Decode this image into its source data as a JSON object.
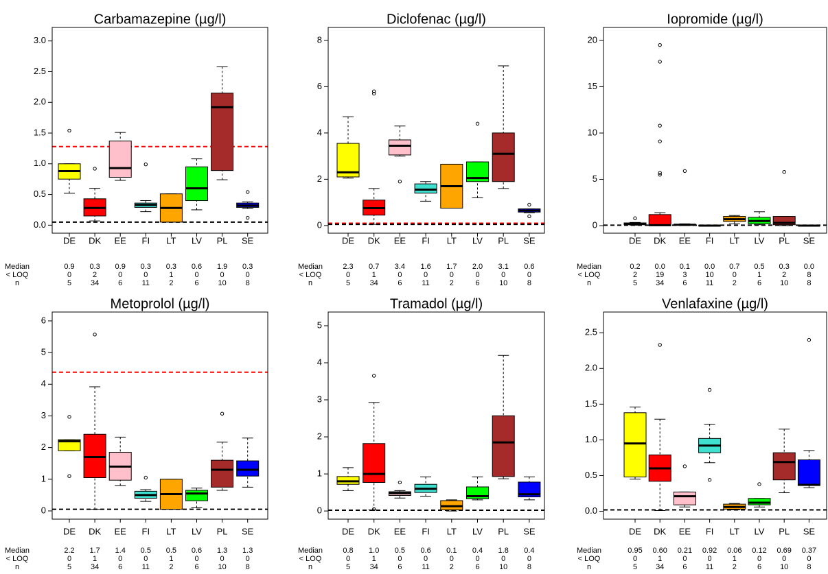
{
  "chart_data": [
    {
      "type": "box",
      "title": "Carbamazepine (µg/l)",
      "categories": [
        "DE",
        "DK",
        "EE",
        "FI",
        "LT",
        "LV",
        "PL",
        "SE"
      ],
      "colors": [
        "#ffff00",
        "#ff0000",
        "#ffc0cb",
        "#40e0d0",
        "#ffa500",
        "#00ff00",
        "#a52a2a",
        "#0000ff"
      ],
      "ylim": [
        -0.13,
        3.22
      ],
      "yticks": [
        {
          "value": 0,
          "label": "0.0"
        },
        0.5,
        {
          "value": 1,
          "label": "1.0"
        },
        1.5,
        {
          "value": 2,
          "label": "2.0"
        },
        2.5,
        {
          "value": 3,
          "label": "3.0"
        }
      ],
      "boxes": [
        {
          "whislo": 0.52,
          "q1": 0.75,
          "med": 0.88,
          "q3": 1.0,
          "whishi": 1.0,
          "fliers": [
            1.54
          ]
        },
        {
          "whislo": 0.07,
          "q1": 0.15,
          "med": 0.28,
          "q3": 0.43,
          "whishi": 0.6,
          "fliers": [
            0.92
          ]
        },
        {
          "whislo": 0.73,
          "q1": 0.78,
          "med": 0.93,
          "q3": 1.37,
          "whishi": 1.51,
          "fliers": []
        },
        {
          "whislo": 0.22,
          "q1": 0.29,
          "med": 0.33,
          "q3": 0.36,
          "whishi": 0.4,
          "fliers": [
            0.99
          ]
        },
        {
          "whislo": 0.05,
          "q1": 0.05,
          "med": 0.28,
          "q3": 0.51,
          "whishi": 0.51,
          "fliers": []
        },
        {
          "whislo": 0.25,
          "q1": 0.4,
          "med": 0.6,
          "q3": 0.95,
          "whishi": 1.08,
          "fliers": []
        },
        {
          "whislo": 0.74,
          "q1": 0.89,
          "med": 1.92,
          "q3": 2.15,
          "whishi": 2.58,
          "fliers": []
        },
        {
          "whislo": 0.27,
          "q1": 0.29,
          "med": 0.32,
          "q3": 0.36,
          "whishi": 0.38,
          "fliers": [
            0.54,
            0.12
          ]
        }
      ],
      "ref_lines": [
        {
          "value": 1.28,
          "color": "#ff0000"
        },
        {
          "value": 0.05,
          "color": "#000000"
        }
      ],
      "table": {
        "row_labels": [
          "Median",
          "< LOQ",
          "n"
        ],
        "rows": [
          [
            "0.9",
            "0.3",
            "0.9",
            "0.3",
            "0.3",
            "0.6",
            "1.9",
            "0.3"
          ],
          [
            "0",
            "2",
            "0",
            "0",
            "1",
            "0",
            "0",
            "0"
          ],
          [
            "5",
            "34",
            "6",
            "11",
            "2",
            "6",
            "10",
            "8"
          ]
        ]
      }
    },
    {
      "type": "box",
      "title": "Diclofenac (µg/l)",
      "categories": [
        "DE",
        "DK",
        "EE",
        "FI",
        "LT",
        "LV",
        "PL",
        "SE"
      ],
      "colors": [
        "#ffff00",
        "#ff0000",
        "#ffc0cb",
        "#40e0d0",
        "#ffa500",
        "#00ff00",
        "#a52a2a",
        "#0000ff"
      ],
      "ylim": [
        -0.33,
        8.56
      ],
      "yticks": [
        0,
        2,
        4,
        6,
        8
      ],
      "boxes": [
        {
          "whislo": 2.05,
          "q1": 2.1,
          "med": 2.3,
          "q3": 3.55,
          "whishi": 4.7,
          "fliers": []
        },
        {
          "whislo": 0.05,
          "q1": 0.45,
          "med": 0.75,
          "q3": 1.1,
          "whishi": 1.6,
          "fliers": [
            5.7,
            5.8
          ]
        },
        {
          "whislo": 3.0,
          "q1": 3.05,
          "med": 3.45,
          "q3": 3.7,
          "whishi": 4.3,
          "fliers": [
            1.9
          ]
        },
        {
          "whislo": 1.05,
          "q1": 1.4,
          "med": 1.55,
          "q3": 1.8,
          "whishi": 1.9,
          "fliers": []
        },
        {
          "whislo": 0.75,
          "q1": 0.75,
          "med": 1.7,
          "q3": 2.65,
          "whishi": 2.65,
          "fliers": []
        },
        {
          "whislo": 1.2,
          "q1": 1.9,
          "med": 2.05,
          "q3": 2.75,
          "whishi": 2.75,
          "fliers": [
            4.4
          ]
        },
        {
          "whislo": 1.6,
          "q1": 1.9,
          "med": 3.1,
          "q3": 4.0,
          "whishi": 6.9,
          "fliers": []
        },
        {
          "whislo": 0.55,
          "q1": 0.58,
          "med": 0.65,
          "q3": 0.72,
          "whishi": 0.72,
          "fliers": [
            0.9,
            0.4
          ]
        }
      ],
      "ref_lines": [
        {
          "value": 0.1,
          "color": "#ff0000"
        },
        {
          "value": 0.05,
          "color": "#000000"
        }
      ],
      "table": {
        "row_labels": [
          "Median",
          "< LOQ",
          "n"
        ],
        "rows": [
          [
            "2.3",
            "0.7",
            "3.4",
            "1.6",
            "1.7",
            "2.0",
            "3.1",
            "0.6"
          ],
          [
            "0",
            "1",
            "0",
            "0",
            "0",
            "0",
            "0",
            "0"
          ],
          [
            "5",
            "34",
            "6",
            "11",
            "2",
            "6",
            "10",
            "8"
          ]
        ]
      }
    },
    {
      "type": "box",
      "title": "Iopromide (µg/l)",
      "categories": [
        "DE",
        "DK",
        "EE",
        "FI",
        "LT",
        "LV",
        "PL",
        "SE"
      ],
      "colors": [
        "#ffff00",
        "#ff0000",
        "#ffc0cb",
        "#40e0d0",
        "#ffa500",
        "#00ff00",
        "#a52a2a",
        "#0000ff"
      ],
      "ylim": [
        -0.81,
        21.4
      ],
      "yticks": [
        0,
        5,
        10,
        15,
        20
      ],
      "boxes": [
        {
          "whislo": 0.05,
          "q1": 0.1,
          "med": 0.2,
          "q3": 0.3,
          "whishi": 0.35,
          "fliers": [
            0.8
          ]
        },
        {
          "whislo": 0,
          "q1": 0,
          "med": 0.05,
          "q3": 1.2,
          "whishi": 1.4,
          "fliers": [
            5.5,
            5.7,
            9.1,
            10.8,
            17.7,
            19.5
          ]
        },
        {
          "whislo": 0,
          "q1": 0.05,
          "med": 0.1,
          "q3": 0.15,
          "whishi": 0.2,
          "fliers": [
            5.9
          ]
        },
        {
          "whislo": 0,
          "q1": 0,
          "med": 0,
          "q3": 0.05,
          "whishi": 0.05,
          "fliers": []
        },
        {
          "whislo": 0.2,
          "q1": 0.45,
          "med": 0.7,
          "q3": 1.0,
          "whishi": 1.1,
          "fliers": []
        },
        {
          "whislo": 0.1,
          "q1": 0.2,
          "med": 0.5,
          "q3": 0.9,
          "whishi": 1.5,
          "fliers": []
        },
        {
          "whislo": 0,
          "q1": 0.1,
          "med": 0.3,
          "q3": 1.0,
          "whishi": 1.0,
          "fliers": [
            5.8
          ]
        },
        {
          "whislo": 0,
          "q1": 0,
          "med": 0,
          "q3": 0.05,
          "whishi": 0.05,
          "fliers": []
        }
      ],
      "ref_lines": [
        {
          "value": 0.05,
          "color": "#000000"
        }
      ],
      "table": {
        "row_labels": [
          "Median",
          "< LOQ",
          "n"
        ],
        "rows": [
          [
            "0.2",
            "0.0",
            "0.1",
            "0.0",
            "0.7",
            "0.5",
            "0.3",
            "0.0"
          ],
          [
            "2",
            "19",
            "3",
            "10",
            "0",
            "1",
            "2",
            "8"
          ],
          [
            "5",
            "34",
            "6",
            "11",
            "2",
            "6",
            "10",
            "8"
          ]
        ]
      }
    },
    {
      "type": "box",
      "title": "Metoprolol (µg/l)",
      "categories": [
        "DE",
        "DK",
        "EE",
        "FI",
        "LT",
        "LV",
        "PL",
        "SE"
      ],
      "colors": [
        "#ffff00",
        "#ff0000",
        "#ffc0cb",
        "#40e0d0",
        "#ffa500",
        "#00ff00",
        "#a52a2a",
        "#0000ff"
      ],
      "ylim": [
        -0.26,
        6.28
      ],
      "yticks": [
        0,
        1,
        2,
        3,
        4,
        5,
        6
      ],
      "boxes": [
        {
          "whislo": 1.9,
          "q1": 1.9,
          "med": 2.2,
          "q3": 2.25,
          "whishi": 2.25,
          "fliers": [
            2.97,
            1.1
          ]
        },
        {
          "whislo": 0.05,
          "q1": 1.05,
          "med": 1.7,
          "q3": 2.42,
          "whishi": 3.92,
          "fliers": [
            5.57
          ]
        },
        {
          "whislo": 0.8,
          "q1": 0.97,
          "med": 1.4,
          "q3": 1.85,
          "whishi": 2.33,
          "fliers": []
        },
        {
          "whislo": 0.3,
          "q1": 0.4,
          "med": 0.5,
          "q3": 0.62,
          "whishi": 0.67,
          "fliers": [
            1.05
          ]
        },
        {
          "whislo": 0.05,
          "q1": 0.05,
          "med": 0.53,
          "q3": 1.0,
          "whishi": 1.0,
          "fliers": []
        },
        {
          "whislo": 0.1,
          "q1": 0.32,
          "med": 0.55,
          "q3": 0.65,
          "whishi": 0.72,
          "fliers": []
        },
        {
          "whislo": 0.65,
          "q1": 0.75,
          "med": 1.3,
          "q3": 1.6,
          "whishi": 2.17,
          "fliers": [
            3.07
          ]
        },
        {
          "whislo": 0.75,
          "q1": 1.1,
          "med": 1.3,
          "q3": 1.58,
          "whishi": 2.3,
          "fliers": []
        }
      ],
      "ref_lines": [
        {
          "value": 4.38,
          "color": "#ff0000"
        },
        {
          "value": 0.05,
          "color": "#000000"
        }
      ],
      "table": {
        "row_labels": [
          "Median",
          "< LOQ",
          "n"
        ],
        "rows": [
          [
            "2.2",
            "1.7",
            "1.4",
            "0.5",
            "0.5",
            "0.6",
            "1.3",
            "1.3"
          ],
          [
            "0",
            "1",
            "0",
            "0",
            "1",
            "0",
            "0",
            "0"
          ],
          [
            "5",
            "34",
            "6",
            "11",
            "2",
            "6",
            "10",
            "8"
          ]
        ]
      }
    },
    {
      "type": "box",
      "title": "Tramadol (µg/l)",
      "categories": [
        "DE",
        "DK",
        "EE",
        "FI",
        "LT",
        "LV",
        "PL",
        "SE"
      ],
      "colors": [
        "#ffff00",
        "#ff0000",
        "#ffc0cb",
        "#40e0d0",
        "#ffa500",
        "#00ff00",
        "#a52a2a",
        "#0000ff"
      ],
      "ylim": [
        -0.22,
        5.37
      ],
      "yticks": [
        0,
        1,
        2,
        3,
        4,
        5
      ],
      "boxes": [
        {
          "whislo": 0.55,
          "q1": 0.72,
          "med": 0.8,
          "q3": 0.93,
          "whishi": 1.17,
          "fliers": []
        },
        {
          "whislo": 0.03,
          "q1": 0.77,
          "med": 1.0,
          "q3": 1.82,
          "whishi": 2.93,
          "fliers": [
            3.65,
            0.05
          ]
        },
        {
          "whislo": 0.35,
          "q1": 0.42,
          "med": 0.48,
          "q3": 0.52,
          "whishi": 0.55,
          "fliers": [
            0.77
          ]
        },
        {
          "whislo": 0.4,
          "q1": 0.5,
          "med": 0.6,
          "q3": 0.72,
          "whishi": 0.92,
          "fliers": []
        },
        {
          "whislo": 0.0,
          "q1": 0.03,
          "med": 0.13,
          "q3": 0.28,
          "whishi": 0.3,
          "fliers": []
        },
        {
          "whislo": 0.3,
          "q1": 0.33,
          "med": 0.4,
          "q3": 0.65,
          "whishi": 0.92,
          "fliers": []
        },
        {
          "whislo": 0.87,
          "q1": 0.93,
          "med": 1.85,
          "q3": 2.57,
          "whishi": 4.2,
          "fliers": []
        },
        {
          "whislo": 0.3,
          "q1": 0.38,
          "med": 0.45,
          "q3": 0.78,
          "whishi": 0.92,
          "fliers": []
        }
      ],
      "ref_lines": [
        {
          "value": 0.02,
          "color": "#000000"
        }
      ],
      "table": {
        "row_labels": [
          "Median",
          "< LOQ",
          "n"
        ],
        "rows": [
          [
            "0.8",
            "1.0",
            "0.5",
            "0.6",
            "0.1",
            "0.4",
            "1.8",
            "0.4"
          ],
          [
            "0",
            "1",
            "0",
            "0",
            "0",
            "0",
            "0",
            "0"
          ],
          [
            "5",
            "34",
            "6",
            "11",
            "2",
            "6",
            "10",
            "8"
          ]
        ]
      }
    },
    {
      "type": "box",
      "title": "Venlafaxine (µg/l)",
      "categories": [
        "DE",
        "DK",
        "EE",
        "FI",
        "LT",
        "LV",
        "PL",
        "SE"
      ],
      "colors": [
        "#ffff00",
        "#ff0000",
        "#ffc0cb",
        "#40e0d0",
        "#ffa500",
        "#00ff00",
        "#a52a2a",
        "#0000ff"
      ],
      "ylim": [
        -0.11,
        2.79
      ],
      "yticks": [
        {
          "value": 0,
          "label": "0.0"
        },
        0.5,
        {
          "value": 1,
          "label": "1.0"
        },
        1.5,
        {
          "value": 2,
          "label": "2.0"
        },
        2.5
      ],
      "boxes": [
        {
          "whislo": 0.45,
          "q1": 0.48,
          "med": 0.95,
          "q3": 1.38,
          "whishi": 1.46,
          "fliers": []
        },
        {
          "whislo": 0.01,
          "q1": 0.42,
          "med": 0.6,
          "q3": 0.79,
          "whishi": 1.29,
          "fliers": [
            2.33
          ]
        },
        {
          "whislo": 0.06,
          "q1": 0.09,
          "med": 0.21,
          "q3": 0.27,
          "whishi": 0.27,
          "fliers": [
            0.63
          ]
        },
        {
          "whislo": 0.68,
          "q1": 0.82,
          "med": 0.92,
          "q3": 1.02,
          "whishi": 1.22,
          "fliers": [
            1.7,
            0.44
          ]
        },
        {
          "whislo": 0.02,
          "q1": 0.03,
          "med": 0.06,
          "q3": 0.1,
          "whishi": 0.11,
          "fliers": []
        },
        {
          "whislo": 0.06,
          "q1": 0.09,
          "med": 0.12,
          "q3": 0.18,
          "whishi": 0.18,
          "fliers": [
            0.38
          ]
        },
        {
          "whislo": 0.26,
          "q1": 0.44,
          "med": 0.69,
          "q3": 0.82,
          "whishi": 1.15,
          "fliers": []
        },
        {
          "whislo": 0.33,
          "q1": 0.36,
          "med": 0.37,
          "q3": 0.72,
          "whishi": 0.85,
          "fliers": [
            2.4
          ]
        }
      ],
      "ref_lines": [
        {
          "value": 0.02,
          "color": "#000000"
        }
      ],
      "table": {
        "row_labels": [
          "Median",
          "< LOQ",
          "n"
        ],
        "rows": [
          [
            "0.95",
            "0.60",
            "0.21",
            "0.92",
            "0.06",
            "0.12",
            "0.69",
            "0.37"
          ],
          [
            "0",
            "1",
            "0",
            "0",
            "1",
            "0",
            "0",
            "0"
          ],
          [
            "5",
            "34",
            "6",
            "11",
            "2",
            "6",
            "10",
            "8"
          ]
        ]
      }
    }
  ]
}
